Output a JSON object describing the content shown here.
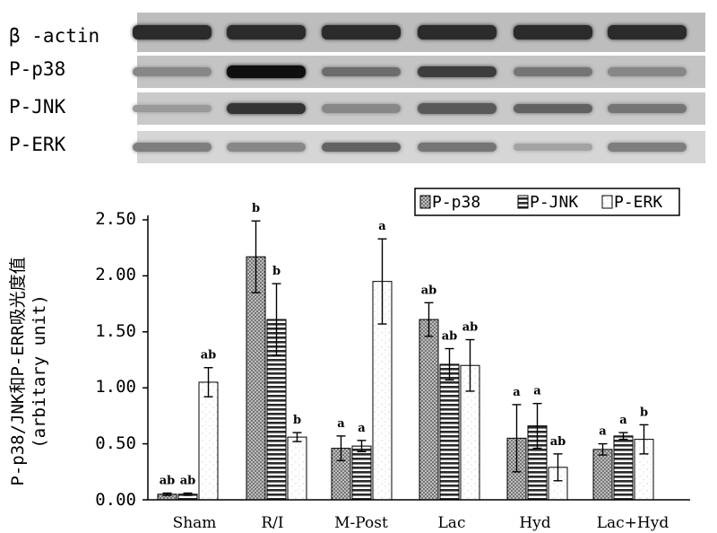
{
  "blot": {
    "rows": [
      {
        "label": "β -actin",
        "intensities": [
          0.85,
          0.85,
          0.85,
          0.85,
          0.85,
          0.85
        ]
      },
      {
        "label": "P-p38",
        "intensities": [
          0.35,
          1.0,
          0.5,
          0.75,
          0.45,
          0.35
        ]
      },
      {
        "label": "P-JNK",
        "intensities": [
          0.25,
          0.8,
          0.35,
          0.6,
          0.55,
          0.45
        ]
      },
      {
        "label": "P-ERK",
        "intensities": [
          0.4,
          0.35,
          0.55,
          0.45,
          0.2,
          0.4
        ]
      }
    ]
  },
  "chart_data": {
    "type": "bar",
    "categories": [
      "Sham",
      "R/I",
      "M-Post",
      "Lac",
      "Hyd",
      "Lac+Hyd"
    ],
    "ylabel": "P-p38/JNK和P-ERR吸光度值",
    "ylabel_sub": "(arbitary unit)",
    "ylim": [
      0,
      2.5
    ],
    "yticks": [
      "0.00",
      "0.50",
      "1.00",
      "1.50",
      "2.00",
      "2.50"
    ],
    "legend_position": "top-right",
    "series": [
      {
        "name": "P-p38",
        "pattern": "dots",
        "values": [
          0.05,
          2.17,
          0.46,
          1.61,
          0.55,
          0.45
        ],
        "errors": [
          0.01,
          0.32,
          0.11,
          0.15,
          0.3,
          0.05
        ],
        "labels": [
          "ab",
          "b",
          "a",
          "ab",
          "a",
          "a"
        ]
      },
      {
        "name": "P-JNK",
        "pattern": "stripes",
        "values": [
          0.05,
          1.61,
          0.48,
          1.21,
          0.66,
          0.57
        ],
        "errors": [
          0.01,
          0.32,
          0.05,
          0.14,
          0.2,
          0.03
        ],
        "labels": [
          "ab",
          "b",
          "a",
          "ab",
          "a",
          "a"
        ]
      },
      {
        "name": "P-ERK",
        "pattern": "speckle",
        "values": [
          1.05,
          0.56,
          1.95,
          1.2,
          0.29,
          0.54
        ],
        "errors": [
          0.13,
          0.04,
          0.38,
          0.23,
          0.12,
          0.13
        ],
        "labels": [
          "ab",
          "b",
          "a",
          "ab",
          "ab",
          "b"
        ]
      }
    ]
  }
}
